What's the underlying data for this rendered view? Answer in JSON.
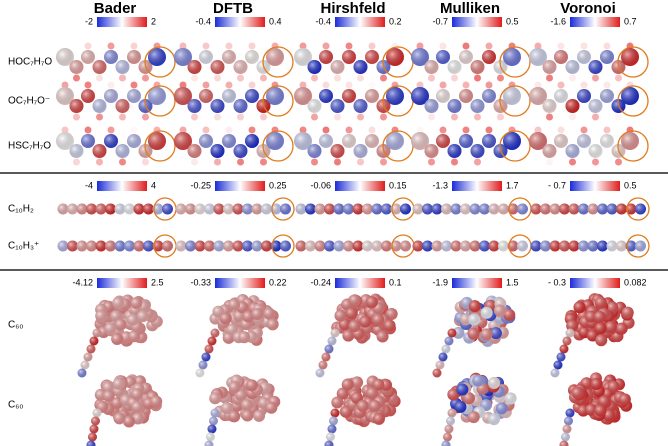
{
  "columns": [
    "Bader",
    "DFTB",
    "Hirshfeld",
    "Mulliken",
    "Voronoi"
  ],
  "sections": [
    {
      "rows": [
        "HOC₇H₇O",
        "OC₇H₇O⁻",
        "HSC₇H₇O"
      ],
      "colorbars": [
        [
          "-2",
          "2"
        ],
        [
          "-0.4",
          "0.4"
        ],
        [
          "-0.4",
          "0.2"
        ],
        [
          "-0.7",
          "0.5"
        ],
        [
          "-1.6",
          "0.7"
        ]
      ]
    },
    {
      "rows": [
        "C₁₀H₂",
        "C₁₀H₃⁺"
      ],
      "colorbars": [
        [
          "-4",
          "4"
        ],
        [
          "-0.25",
          "0.25"
        ],
        [
          "-0.06",
          "0.15"
        ],
        [
          "-1.3",
          "1.7"
        ],
        [
          "- 0.7",
          "0.5"
        ]
      ]
    },
    {
      "rows": [
        "C₆₀",
        "C₆₀"
      ],
      "colorbars": [
        [
          "-4.12",
          "2.5"
        ],
        [
          "-0.33",
          "0.22"
        ],
        [
          "-0.24",
          "0.1"
        ],
        [
          "-1.9",
          "1.5"
        ],
        [
          "- 0.3",
          "0.082"
        ]
      ]
    }
  ]
}
